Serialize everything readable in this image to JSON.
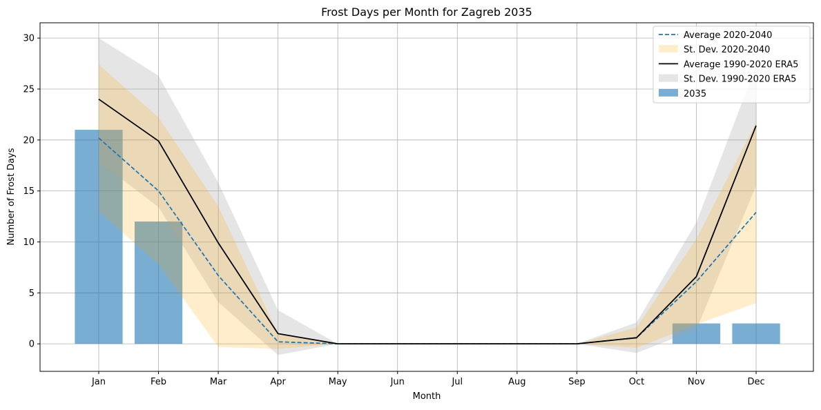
{
  "chart_data": {
    "type": "line",
    "title": "Frost Days per Month for Zagreb 2035",
    "xlabel": "Month",
    "ylabel": "Number of Frost Days",
    "categories": [
      "Jan",
      "Feb",
      "Mar",
      "Apr",
      "May",
      "Jun",
      "Jul",
      "Aug",
      "Sep",
      "Oct",
      "Nov",
      "Dec"
    ],
    "ylim": [
      -2.7,
      31.5
    ],
    "yticks": [
      0,
      5,
      10,
      15,
      20,
      25,
      30
    ],
    "grid": true,
    "legend_position": "top-right",
    "series": [
      {
        "name": "2035",
        "kind": "bar",
        "color": "#1f77b4",
        "opacity": 0.6,
        "values": [
          21,
          12,
          0,
          0,
          0,
          0,
          0,
          0,
          0,
          0,
          2,
          2
        ]
      },
      {
        "name": "St. Dev. 1990-2020 ERA5",
        "kind": "band",
        "color": "#a0a0a0",
        "opacity": 0.28,
        "upper": [
          30.0,
          26.3,
          15.8,
          3.3,
          0.0,
          0.0,
          0.0,
          0.0,
          0.0,
          2.1,
          11.9,
          27.3
        ],
        "lower": [
          17.9,
          13.4,
          4.1,
          -1.1,
          0.0,
          0.0,
          0.0,
          0.0,
          0.0,
          -0.9,
          1.4,
          15.5
        ]
      },
      {
        "name": "St. Dev. 2020-2040",
        "kind": "band",
        "color": "#ffa500",
        "opacity": 0.2,
        "upper": [
          27.4,
          22.2,
          13.5,
          1.0,
          0.0,
          0.0,
          0.0,
          0.0,
          0.0,
          1.6,
          10.3,
          21.7
        ],
        "lower": [
          13.0,
          7.8,
          -0.3,
          -0.5,
          0.0,
          0.0,
          0.0,
          0.0,
          0.0,
          -0.4,
          1.9,
          4.0
        ]
      },
      {
        "name": "Average 2020-2040",
        "kind": "line",
        "dash": "dashed",
        "color": "#1f77b4",
        "values": [
          20.2,
          15.0,
          6.7,
          0.2,
          0.0,
          0.0,
          0.0,
          0.0,
          0.0,
          0.6,
          6.1,
          12.9
        ]
      },
      {
        "name": "Average 1990-2020 ERA5",
        "kind": "line",
        "dash": "solid",
        "color": "#000000",
        "values": [
          24.0,
          19.9,
          9.9,
          1.0,
          0.0,
          0.0,
          0.0,
          0.0,
          0.0,
          0.6,
          6.6,
          21.4
        ]
      }
    ],
    "legend": [
      {
        "label": "Average 2020-2040",
        "symbol": "dashed-line",
        "color": "#1f77b4"
      },
      {
        "label": "St. Dev. 2020-2040",
        "symbol": "patch",
        "color": "#ffa500",
        "opacity": 0.2
      },
      {
        "label": "Average 1990-2020 ERA5",
        "symbol": "line",
        "color": "#000000"
      },
      {
        "label": "St. Dev. 1990-2020 ERA5",
        "symbol": "patch",
        "color": "#a0a0a0",
        "opacity": 0.28
      },
      {
        "label": "2035",
        "symbol": "patch",
        "color": "#1f77b4",
        "opacity": 0.6
      }
    ]
  }
}
